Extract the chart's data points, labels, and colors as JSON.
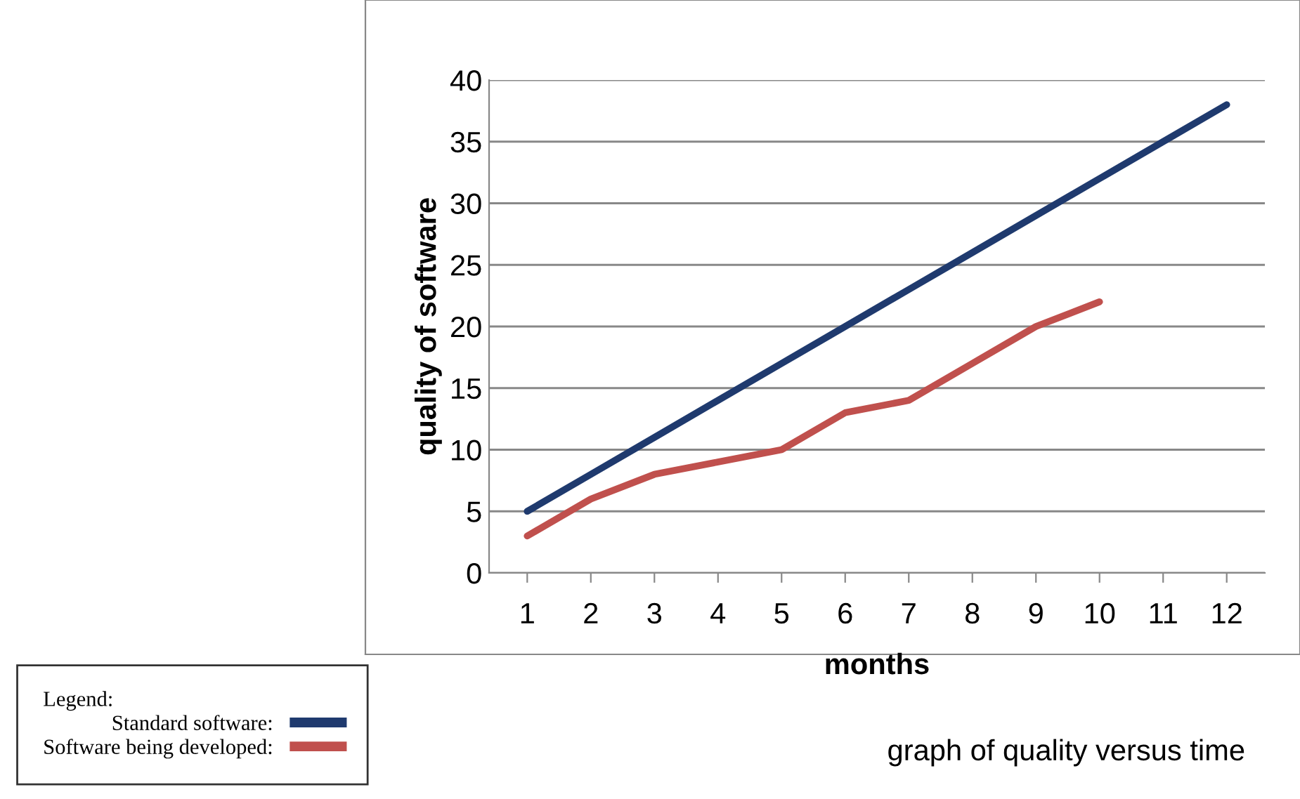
{
  "chart_data": {
    "type": "line",
    "title": "graph of quality versus time",
    "xlabel": "months",
    "ylabel": "quality of software",
    "legend_title": "Legend:",
    "categories": [
      "1",
      "2",
      "3",
      "4",
      "5",
      "6",
      "7",
      "8",
      "9",
      "10",
      "11",
      "12"
    ],
    "series": [
      {
        "name": "Standard software:",
        "color": "#1f3a6e",
        "values": [
          5,
          8,
          11,
          14,
          17,
          20,
          23,
          26,
          29,
          32,
          35,
          38
        ]
      },
      {
        "name": "Software being developed:",
        "color": "#c0504d",
        "values": [
          3,
          6,
          8,
          9,
          10,
          13,
          14,
          17,
          20,
          22,
          null,
          null
        ]
      }
    ],
    "ylim": [
      0,
      40
    ],
    "yticks": [
      0,
      5,
      10,
      15,
      20,
      25,
      30,
      35,
      40
    ],
    "grid": "y",
    "legend": "bottom left",
    "marker": "none",
    "line_style": "solid"
  }
}
